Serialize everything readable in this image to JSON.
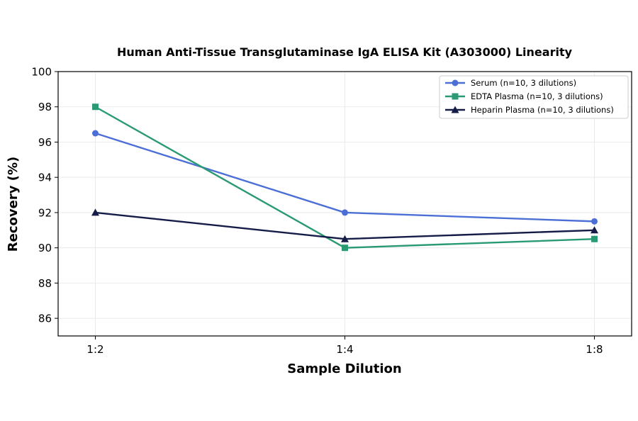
{
  "chart_data": {
    "type": "line",
    "title": "Human Anti-Tissue Transglutaminase IgA ELISA Kit (A303000) Linearity",
    "xlabel": "Sample Dilution",
    "ylabel": "Recovery (%)",
    "categories": [
      "1:2",
      "1:4",
      "1:8"
    ],
    "ylim": [
      85,
      100
    ],
    "yticks": [
      86,
      88,
      90,
      92,
      94,
      96,
      98,
      100
    ],
    "grid": true,
    "legend_position": "top-right",
    "series": [
      {
        "name": "Serum (n=10, 3 dilutions)",
        "values": [
          96.5,
          92.0,
          91.5
        ],
        "color": "#4c6fd6",
        "marker": "circle"
      },
      {
        "name": "EDTA Plasma (n=10, 3 dilutions)",
        "values": [
          98.0,
          90.0,
          90.5
        ],
        "color": "#2a9a72",
        "marker": "square"
      },
      {
        "name": "Heparin Plasma (n=10, 3 dilutions)",
        "values": [
          92.0,
          90.5,
          91.0
        ],
        "color": "#141c47",
        "marker": "triangle"
      }
    ]
  }
}
